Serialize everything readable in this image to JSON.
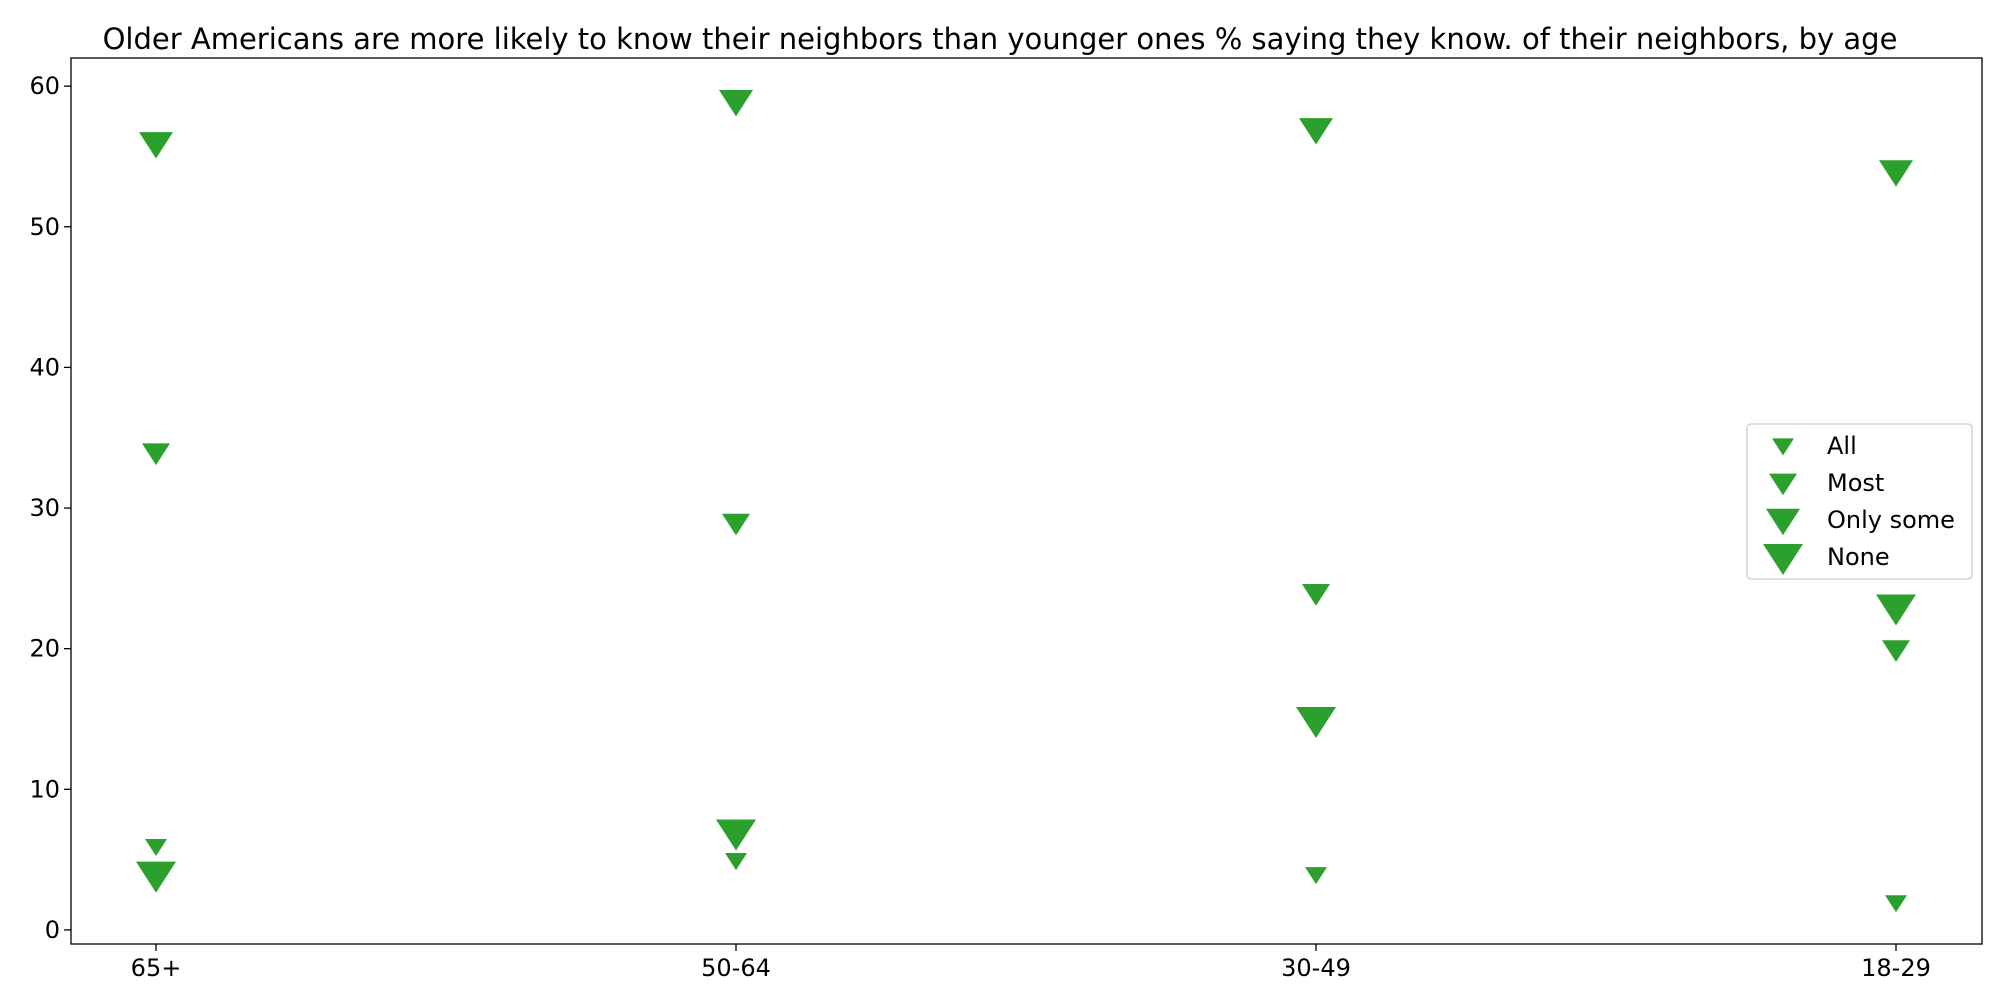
{
  "chart_data": {
    "type": "scatter",
    "title": "Older Americans are more likely to know their neighbors than younger ones % saying they know. of their neighbors, by age",
    "xlabel": "",
    "ylabel": "",
    "categories": [
      "65+",
      "50-64",
      "30-49",
      "18-29"
    ],
    "ylim": [
      -1,
      62
    ],
    "yticks": [
      0,
      10,
      20,
      30,
      40,
      50,
      60
    ],
    "grid": false,
    "legend_position": "center-right",
    "marker": "triangle-down",
    "color": "#2ca02c",
    "series": [
      {
        "name": "All",
        "values": [
          6,
          5,
          4,
          2
        ]
      },
      {
        "name": "Most",
        "values": [
          34,
          29,
          24,
          20
        ]
      },
      {
        "name": "Only some",
        "values": [
          56,
          59,
          57,
          54
        ]
      },
      {
        "name": "None",
        "values": [
          4,
          7,
          15,
          23
        ]
      }
    ]
  }
}
